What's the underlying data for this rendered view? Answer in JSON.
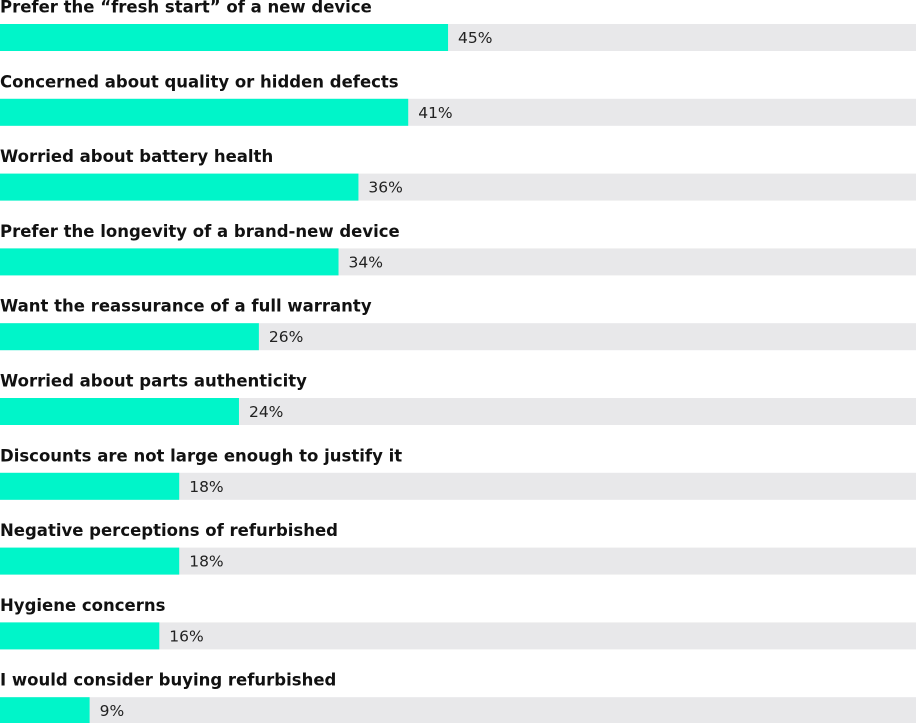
{
  "chart_data": {
    "type": "hbar",
    "categories": [
      "Prefer the “fresh start” of a new device",
      "Concerned about quality or hidden defects",
      "Worried about battery health",
      "Prefer the longevity of a brand-new device",
      "Want the reassurance of a full warranty",
      "Worried about parts authenticity",
      "Discounts are not large enough to justify it",
      "Negative perceptions of refurbished",
      "Hygiene concerns",
      "I would consider buying refurbished"
    ],
    "values": [
      45,
      41,
      36,
      34,
      26,
      24,
      18,
      18,
      16,
      9
    ],
    "value_labels": [
      "45%",
      "41%",
      "36%",
      "34%",
      "26%",
      "24%",
      "18%",
      "18%",
      "16%",
      "9%"
    ],
    "color": "#00f5c9",
    "track_color": "#e8e8ea",
    "xlim": [
      0,
      92
    ]
  }
}
